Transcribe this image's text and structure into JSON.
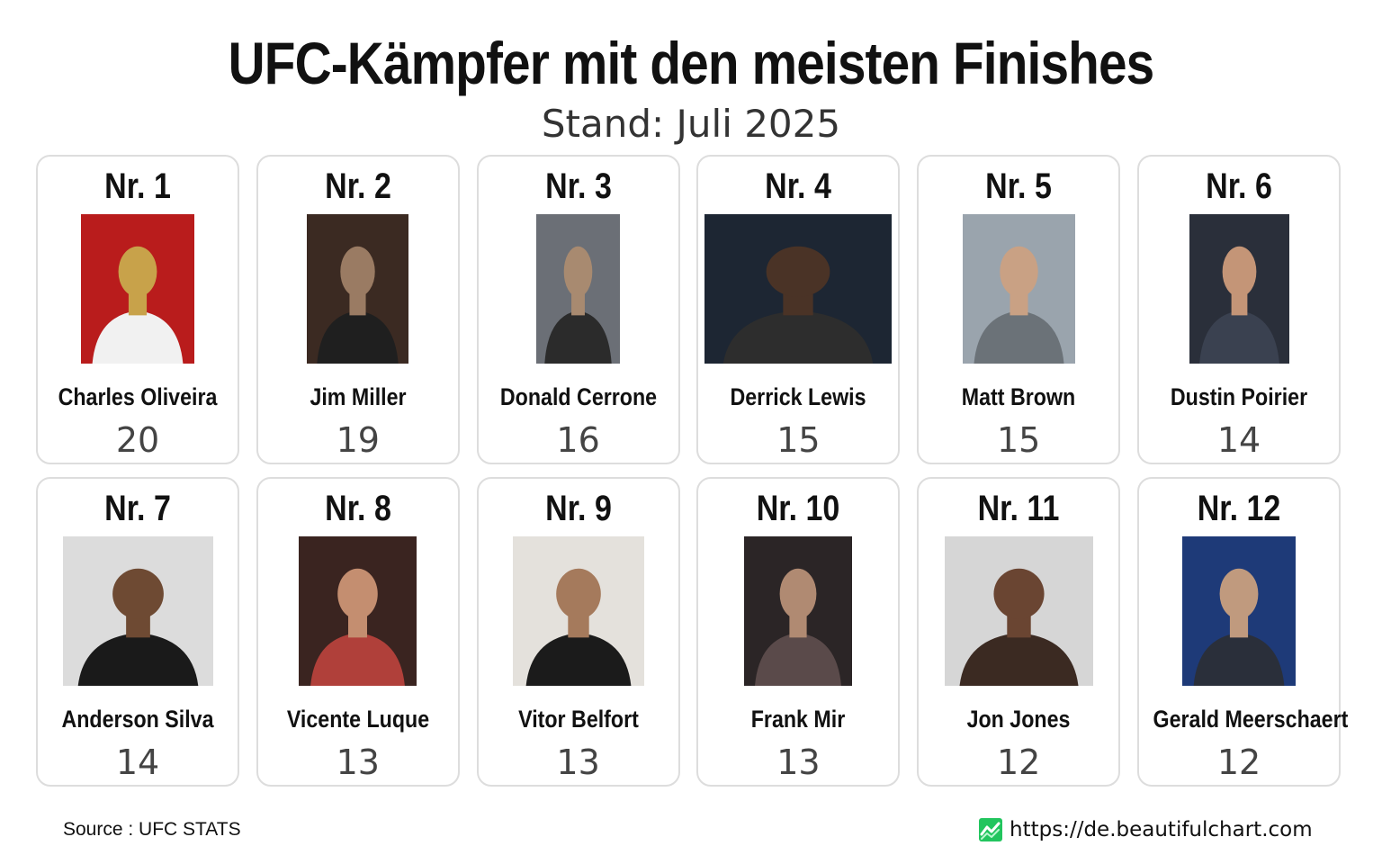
{
  "header": {
    "title": "UFC-Kämpfer mit den meisten Finishes",
    "subtitle": "Stand: Juli 2025"
  },
  "chart_data": {
    "type": "table",
    "categories": [
      "Charles Oliveira",
      "Jim Miller",
      "Donald Cerrone",
      "Derrick Lewis",
      "Matt Brown",
      "Dustin Poirier",
      "Anderson Silva",
      "Vicente Luque",
      "Vitor Belfort",
      "Frank Mir",
      "Jon Jones",
      "Gerald Meerschaert"
    ],
    "values": [
      20,
      19,
      16,
      15,
      15,
      14,
      14,
      13,
      13,
      13,
      12,
      12
    ],
    "ranks": [
      "Nr. 1",
      "Nr. 2",
      "Nr. 3",
      "Nr. 4",
      "Nr. 5",
      "Nr. 6",
      "Nr. 7",
      "Nr. 8",
      "Nr. 9",
      "Nr. 10",
      "Nr. 11",
      "Nr. 12"
    ],
    "title": "UFC-Kämpfer mit den meisten Finishes",
    "subtitle": "Stand: Juli 2025"
  },
  "footer": {
    "source": "Source : UFC STATS",
    "url": "https://de.beautifulchart.com"
  },
  "colors": {
    "card_border": "#dddddd",
    "value_text": "#444444",
    "brand_icon_bg": "#22c55e"
  }
}
